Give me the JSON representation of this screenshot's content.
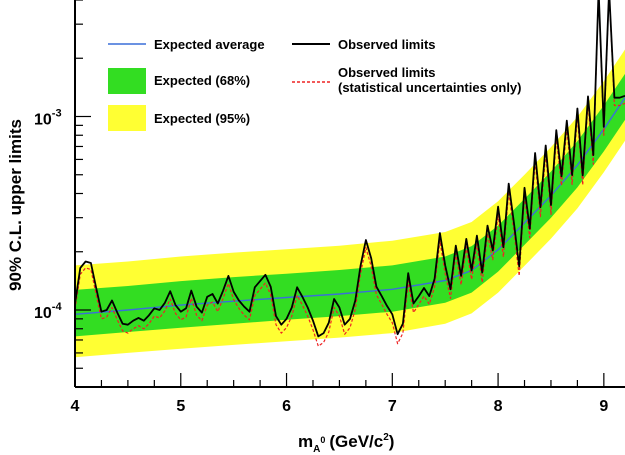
{
  "chart_data": {
    "type": "line",
    "xlabel": "m",
    "xlabel_sub": "A",
    "xlabel_sup": "0",
    "xlabel_units": "(GeV/c",
    "xlabel_units_sup": "2",
    "xlabel_close": ")",
    "ylabel": "90% C.L. upper limits",
    "xlim": [
      4.0,
      9.2
    ],
    "ylim": [
      4e-05,
      0.004
    ],
    "log_y": true,
    "grid": false,
    "x_ticks": [
      {
        "value": 4,
        "label": "4"
      },
      {
        "value": 5,
        "label": "5"
      },
      {
        "value": 6,
        "label": "6"
      },
      {
        "value": 7,
        "label": "7"
      },
      {
        "value": 8,
        "label": "8"
      },
      {
        "value": 9,
        "label": "9"
      }
    ],
    "y_ticks": [
      {
        "value": 0.0001,
        "mantissa": "10",
        "exponent": "-4"
      },
      {
        "value": 0.001,
        "mantissa": "10",
        "exponent": "-3"
      }
    ],
    "legend": {
      "position": "top-left",
      "entries": [
        {
          "label": "Expected average",
          "style": "line",
          "color": "#3a6fd8"
        },
        {
          "label": "Observed limits",
          "style": "line",
          "color": "#000000"
        },
        {
          "label": "Expected (68%)",
          "style": "box",
          "color": "#33dd22"
        },
        {
          "label": "Observed limits",
          "label2": "(statistical uncertainties only)",
          "style": "dashed",
          "color": "#ee2222"
        },
        {
          "label": "Expected (95%)",
          "style": "box",
          "color": "#ffff33"
        }
      ]
    },
    "band_x": [
      4.0,
      4.5,
      5.0,
      5.5,
      6.0,
      6.5,
      7.0,
      7.5,
      7.75,
      8.0,
      8.25,
      8.5,
      8.75,
      9.0,
      9.2
    ],
    "series": [
      {
        "name": "Expected average",
        "color": "#3a6fd8",
        "values": [
          9.5e-05,
          0.0001,
          0.000106,
          0.000111,
          0.000116,
          0.000121,
          0.000128,
          0.000142,
          0.00016,
          0.000205,
          0.000282,
          0.00039,
          0.00056,
          0.00086,
          0.00125
        ]
      },
      {
        "name": "Expected (68%)",
        "color": "#33dd22",
        "upper": [
          0.000127,
          0.000133,
          0.000141,
          0.000148,
          0.000154,
          0.000161,
          0.00017,
          0.000189,
          0.000214,
          0.000273,
          0.000375,
          0.00052,
          0.000745,
          0.00114,
          0.00166
        ],
        "lower": [
          7.3e-05,
          7.7e-05,
          8.1e-05,
          8.5e-05,
          8.9e-05,
          9.3e-05,
          9.8e-05,
          0.000109,
          0.000123,
          0.000158,
          0.000217,
          0.0003,
          0.00043,
          0.00066,
          0.00096
        ]
      },
      {
        "name": "Expected (95%)",
        "color": "#ffff33",
        "upper": [
          0.00017,
          0.000178,
          0.000189,
          0.000198,
          0.000206,
          0.000215,
          0.000228,
          0.000253,
          0.000285,
          0.000365,
          0.0005,
          0.000695,
          0.000995,
          0.00152,
          0.00222
        ],
        "lower": [
          5.7e-05,
          6e-05,
          6.3e-05,
          6.6e-05,
          6.9e-05,
          7.2e-05,
          7.6e-05,
          8.5e-05,
          9.6e-05,
          0.000123,
          0.000169,
          0.000234,
          0.000335,
          0.000515,
          0.00075
        ]
      },
      {
        "name": "Observed limits",
        "color": "#000000",
        "x": [
          4.0,
          4.05,
          4.1,
          4.15,
          4.2,
          4.25,
          4.3,
          4.35,
          4.4,
          4.45,
          4.5,
          4.55,
          4.6,
          4.65,
          4.7,
          4.75,
          4.8,
          4.85,
          4.9,
          4.95,
          5.0,
          5.05,
          5.1,
          5.15,
          5.2,
          5.25,
          5.3,
          5.35,
          5.4,
          5.45,
          5.5,
          5.55,
          5.6,
          5.65,
          5.7,
          5.75,
          5.8,
          5.85,
          5.9,
          5.95,
          6.0,
          6.05,
          6.1,
          6.15,
          6.2,
          6.25,
          6.3,
          6.35,
          6.4,
          6.45,
          6.5,
          6.55,
          6.6,
          6.65,
          6.7,
          6.75,
          6.8,
          6.85,
          6.9,
          6.95,
          7.0,
          7.05,
          7.1,
          7.15,
          7.2,
          7.25,
          7.3,
          7.35,
          7.4,
          7.45,
          7.5,
          7.55,
          7.6,
          7.65,
          7.7,
          7.75,
          7.8,
          7.85,
          7.9,
          7.95,
          8.0,
          8.05,
          8.1,
          8.15,
          8.2,
          8.25,
          8.3,
          8.35,
          8.4,
          8.45,
          8.5,
          8.55,
          8.6,
          8.65,
          8.7,
          8.75,
          8.8,
          8.85,
          8.9,
          8.95,
          9.0,
          9.05,
          9.1,
          9.15,
          9.2
        ],
        "values": [
          0.000108,
          0.000165,
          0.000178,
          0.000175,
          0.00013,
          9.8e-05,
          0.0001,
          0.000112,
          9.7e-05,
          8.5e-05,
          8.4e-05,
          8.8e-05,
          9.1e-05,
          8.8e-05,
          9.4e-05,
          0.000102,
          0.0001,
          0.000109,
          0.000125,
          0.000106,
          9.8e-05,
          0.000102,
          0.000126,
          0.000104,
          9.7e-05,
          0.000117,
          0.000121,
          0.000108,
          0.000126,
          0.00015,
          0.000124,
          0.000112,
          0.000104,
          9.8e-05,
          0.000131,
          0.000141,
          0.000152,
          0.000132,
          9.3e-05,
          8.4e-05,
          9e-05,
          0.000103,
          0.000131,
          0.000117,
          0.000103,
          8.8e-05,
          7.3e-05,
          7.6e-05,
          8.6e-05,
          0.000114,
          0.000103,
          8.4e-05,
          9e-05,
          0.000112,
          0.00017,
          0.00023,
          0.000185,
          0.000132,
          0.000118,
          0.000105,
          9.5e-05,
          7.5e-05,
          8.5e-05,
          0.000155,
          0.000108,
          0.000118,
          0.00013,
          0.000118,
          0.000145,
          0.00025,
          0.00017,
          0.000128,
          0.000215,
          0.00015,
          0.000233,
          0.00016,
          0.000242,
          0.000156,
          0.000273,
          0.000203,
          0.000342,
          0.000211,
          0.00045,
          0.000283,
          0.000168,
          0.000428,
          0.000263,
          0.000648,
          0.00034,
          0.000708,
          0.000349,
          0.00085,
          0.000491,
          0.000951,
          0.000498,
          0.0011,
          0.000497,
          0.00127,
          0.000632,
          0.0045,
          0.000885,
          0.0045,
          0.00125,
          0.00125,
          0.00128
        ]
      },
      {
        "name": "Observed limits (statistical uncertainties only)",
        "color": "#ee2222",
        "x": [
          4.0,
          4.05,
          4.1,
          4.15,
          4.2,
          4.25,
          4.3,
          4.35,
          4.4,
          4.45,
          4.5,
          4.55,
          4.6,
          4.65,
          4.7,
          4.75,
          4.8,
          4.85,
          4.9,
          4.95,
          5.0,
          5.05,
          5.1,
          5.15,
          5.2,
          5.25,
          5.3,
          5.35,
          5.4,
          5.45,
          5.5,
          5.55,
          5.6,
          5.65,
          5.7,
          5.75,
          5.8,
          5.85,
          5.9,
          5.95,
          6.0,
          6.05,
          6.1,
          6.15,
          6.2,
          6.25,
          6.3,
          6.35,
          6.4,
          6.45,
          6.5,
          6.55,
          6.6,
          6.65,
          6.7,
          6.75,
          6.8,
          6.85,
          6.9,
          6.95,
          7.0,
          7.05,
          7.1,
          7.15,
          7.2,
          7.25,
          7.3,
          7.35,
          7.4,
          7.45,
          7.5,
          7.55,
          7.6,
          7.65,
          7.7,
          7.75,
          7.8,
          7.85,
          7.9,
          7.95,
          8.0,
          8.05,
          8.1,
          8.15,
          8.2,
          8.25,
          8.3,
          8.35,
          8.4,
          8.45,
          8.5,
          8.55,
          8.6,
          8.65,
          8.7,
          8.75,
          8.8,
          8.85,
          8.9,
          8.95,
          9.0,
          9.05,
          9.1,
          9.15,
          9.2
        ],
        "values": [
          0.000101,
          0.000153,
          0.000165,
          0.000162,
          0.00012,
          9e-05,
          9.2e-05,
          0.000103,
          8.9e-05,
          7.8e-05,
          7.6e-05,
          8e-05,
          8.3e-05,
          8e-05,
          8.5e-05,
          9.3e-05,
          9.1e-05,
          9.9e-05,
          0.000114,
          9.6e-05,
          8.9e-05,
          9.2e-05,
          0.000115,
          9.4e-05,
          8.8e-05,
          0.000106,
          0.00011,
          9.8e-05,
          0.000115,
          0.000137,
          0.000113,
          0.000102,
          9.4e-05,
          8.9e-05,
          0.000119,
          0.000128,
          0.000138,
          0.00012,
          8.4e-05,
          7.6e-05,
          8.1e-05,
          9.3e-05,
          0.000119,
          0.000106,
          9.3e-05,
          7.9e-05,
          6.5e-05,
          6.8e-05,
          7.7e-05,
          0.000103,
          9.3e-05,
          7.5e-05,
          8.1e-05,
          0.000101,
          0.000155,
          0.00021,
          0.000168,
          0.00012,
          0.000107,
          9.5e-05,
          8.6e-05,
          6.7e-05,
          7.6e-05,
          0.000141,
          9.7e-05,
          0.000107,
          0.000118,
          0.000107,
          0.000132,
          0.000228,
          0.000154,
          0.000115,
          0.000196,
          0.000135,
          0.000212,
          0.000144,
          0.00022,
          0.000139,
          0.000248,
          0.000182,
          0.000311,
          0.000188,
          0.00041,
          0.000255,
          0.00015,
          0.00039,
          0.000236,
          0.00059,
          0.000304,
          0.000645,
          0.000312,
          0.000775,
          0.00044,
          0.000866,
          0.000446,
          0.001,
          0.000443,
          0.00116,
          0.000566,
          0.0045,
          0.0008,
          0.0045,
          0.00114,
          0.00114,
          0.00117
        ]
      }
    ]
  }
}
